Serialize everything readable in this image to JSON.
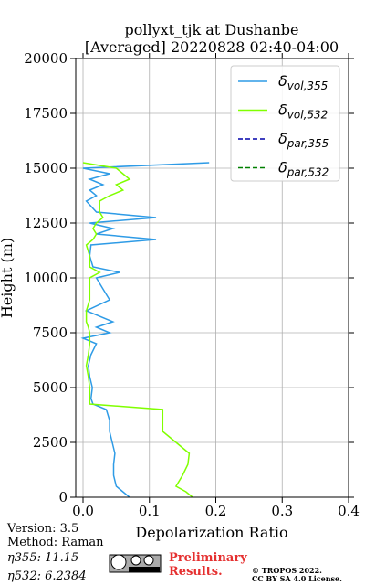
{
  "chart_data": {
    "type": "profile",
    "title": "pollyxt_tjk at Dushanbe",
    "subtitle": "[Averaged] 20220828 02:40-04:00",
    "x_label": "Depolarization Ratio",
    "y_label": "Height (m)",
    "y": [
      0,
      250,
      500,
      1000,
      1500,
      2000,
      2500,
      3000,
      3500,
      4000,
      4250,
      4500,
      5000,
      5500,
      6000,
      6500,
      7000,
      7250,
      7500,
      7750,
      8000,
      8500,
      9000,
      9500,
      10000,
      10250,
      10500,
      11000,
      11500,
      11750,
      12000,
      12250,
      12500,
      12750,
      13000,
      13500,
      13750,
      14000,
      14250,
      14500,
      14750,
      15000,
      15250
    ],
    "series": [
      {
        "name": "δvol,355",
        "color": "#2e9be6",
        "dash": false,
        "values": [
          0.07,
          0.06,
          0.05,
          0.046,
          0.046,
          0.048,
          0.044,
          0.04,
          0.04,
          0.035,
          0.015,
          0.012,
          0.014,
          0.01,
          0.008,
          0.012,
          0.02,
          0.0,
          0.04,
          0.02,
          0.045,
          0.005,
          0.04,
          0.03,
          0.02,
          0.055,
          0.015,
          0.01,
          0.012,
          0.11,
          0.02,
          0.045,
          0.01,
          0.11,
          0.02,
          0.005,
          0.02,
          0.01,
          0.03,
          0.01,
          0.04,
          0.0,
          0.19
        ]
      },
      {
        "name": "δvol,532",
        "color": "#80ff00",
        "dash": false,
        "values": [
          0.165,
          0.155,
          0.14,
          0.15,
          0.158,
          0.16,
          0.14,
          0.12,
          0.12,
          0.12,
          0.01,
          0.01,
          0.01,
          0.008,
          0.005,
          0.008,
          0.01,
          0.01,
          0.01,
          0.008,
          0.005,
          0.005,
          0.01,
          0.01,
          0.01,
          0.025,
          0.01,
          0.01,
          0.005,
          0.015,
          0.02,
          0.015,
          0.02,
          0.03,
          0.025,
          0.025,
          0.04,
          0.06,
          0.05,
          0.07,
          0.06,
          0.05,
          0.0
        ]
      },
      {
        "name": "δpar,355",
        "color": "#0000aa",
        "dash": true,
        "values": [
          null,
          null,
          null,
          null,
          null,
          null,
          null,
          null,
          null,
          null,
          null,
          null,
          null,
          null,
          null,
          null,
          null,
          null,
          null,
          null,
          null,
          null,
          null,
          null,
          null,
          null,
          null,
          null,
          null,
          null,
          null,
          null,
          null,
          null,
          null,
          null,
          null,
          null,
          null,
          null,
          null,
          null,
          null
        ]
      },
      {
        "name": "δpar,532",
        "color": "#008000",
        "dash": true,
        "values": [
          null,
          null,
          null,
          null,
          null,
          null,
          null,
          null,
          null,
          null,
          null,
          null,
          null,
          null,
          null,
          null,
          null,
          null,
          null,
          null,
          null,
          null,
          null,
          null,
          null,
          null,
          null,
          null,
          null,
          null,
          null,
          null,
          null,
          null,
          null,
          null,
          null,
          null,
          null,
          null,
          null,
          null,
          null
        ]
      }
    ],
    "xlim": [
      -0.011,
      0.4
    ],
    "xticks": [
      {
        "value": 0,
        "label": "0.0"
      },
      0.1,
      0.2,
      0.3,
      0.4
    ],
    "ylim": [
      0,
      20000
    ],
    "yticks": [
      0,
      2500,
      5000,
      7500,
      10000,
      12500,
      15000,
      17500,
      20000
    ],
    "grid": true,
    "legend": "upper right"
  },
  "footer": {
    "version": "Version: 3.5",
    "method": "Method: Raman",
    "eta355": "η355:  11.15",
    "eta532": "η532: 6.2384",
    "preliminary_1": "Preliminary",
    "preliminary_2": "Results.",
    "copyright": "© TROPOS 2022.",
    "license": "CC BY SA 4.0 License."
  }
}
